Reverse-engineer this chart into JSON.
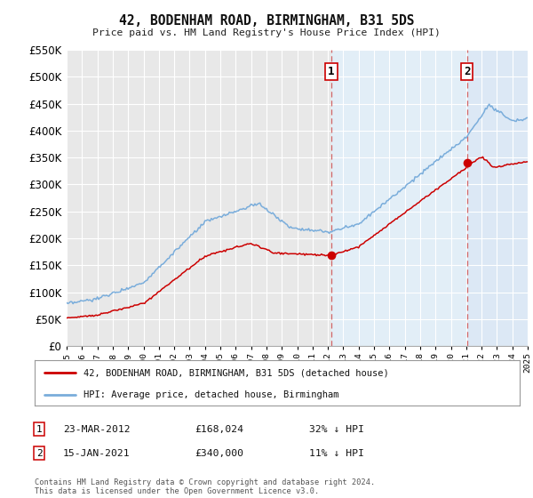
{
  "title": "42, BODENHAM ROAD, BIRMINGHAM, B31 5DS",
  "subtitle": "Price paid vs. HM Land Registry's House Price Index (HPI)",
  "background_color": "#ffffff",
  "plot_background": "#e8e8e8",
  "plot_background_right": "#dce8f5",
  "grid_color": "#ffffff",
  "ylim": [
    0,
    550000
  ],
  "yticks": [
    0,
    50000,
    100000,
    150000,
    200000,
    250000,
    300000,
    350000,
    400000,
    450000,
    500000,
    550000
  ],
  "sale1_year": 2012.208,
  "sale1_price": 168024,
  "sale2_year": 2021.042,
  "sale2_price": 340000,
  "legend_label_red": "42, BODENHAM ROAD, BIRMINGHAM, B31 5DS (detached house)",
  "legend_label_blue": "HPI: Average price, detached house, Birmingham",
  "footer": "Contains HM Land Registry data © Crown copyright and database right 2024.\nThis data is licensed under the Open Government Licence v3.0.",
  "red_color": "#cc0000",
  "blue_color": "#7aaddb",
  "shade_start_year": 2021.042,
  "xmin": 1995,
  "xmax": 2025
}
